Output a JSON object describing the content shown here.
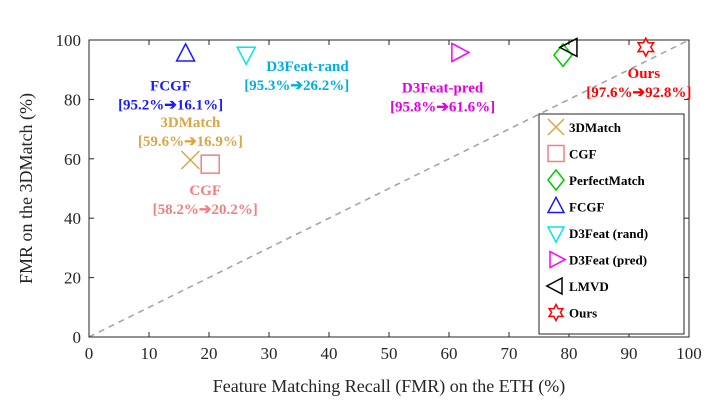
{
  "chart_data": {
    "type": "scatter",
    "xlabel": "Feature Matching Recall (FMR) on the ETH (%)",
    "ylabel": "FMR on the 3DMatch (%)",
    "xlim": [
      0,
      100
    ],
    "ylim": [
      0,
      100
    ],
    "xticks": [
      0,
      10,
      20,
      30,
      40,
      50,
      60,
      70,
      80,
      90,
      100
    ],
    "yticks": [
      0,
      20,
      40,
      60,
      80,
      100
    ],
    "grid": false,
    "legend_position": "bottom-right",
    "reference_line": {
      "type": "diagonal",
      "from": [
        0,
        0
      ],
      "to": [
        100,
        100
      ],
      "style": "dashed",
      "color": "#a6a6a6"
    },
    "series": [
      {
        "name": "3DMatch",
        "x": 16.9,
        "y": 59.6,
        "marker": "x",
        "color": "#d9a64a"
      },
      {
        "name": "CGF",
        "x": 20.2,
        "y": 58.2,
        "marker": "square",
        "color": "#f08080"
      },
      {
        "name": "PerfectMatch",
        "x": 79.0,
        "y": 94.9,
        "marker": "diamond",
        "color": "#00cc00"
      },
      {
        "name": "FCGF",
        "x": 16.1,
        "y": 95.2,
        "marker": "triangle-up",
        "color": "#1a1aff"
      },
      {
        "name": "D3Feat (rand)",
        "x": 26.2,
        "y": 95.3,
        "marker": "triangle-down",
        "color": "#00e5ee"
      },
      {
        "name": "D3Feat (pred)",
        "x": 61.6,
        "y": 95.8,
        "marker": "triangle-right",
        "color": "#ff00ff"
      },
      {
        "name": "LMVD",
        "x": 80.2,
        "y": 97.5,
        "marker": "triangle-left",
        "color": "#000000"
      },
      {
        "name": "Ours",
        "x": 92.8,
        "y": 97.6,
        "marker": "hexagram",
        "color": "#ff0000"
      }
    ],
    "annotations": [
      {
        "name": "FCGF",
        "range": "[95.2%➔16.1%]",
        "color": "#1a1aff"
      },
      {
        "name": "D3Feat-rand",
        "range": "[95.3%➔26.2%]",
        "color": "#00b0e0"
      },
      {
        "name": "D3Feat-pred",
        "range": "[95.8%➔61.6%]",
        "color": "#e000e0"
      },
      {
        "name": "Ours",
        "range": "[97.6%➔92.8%]",
        "color": "#ff0000"
      },
      {
        "name": "3DMatch",
        "range": "[59.6%➔16.9%]",
        "color": "#d9a64a"
      },
      {
        "name": "CGF",
        "range": "[58.2%➔20.2%]",
        "color": "#f08080"
      }
    ]
  }
}
